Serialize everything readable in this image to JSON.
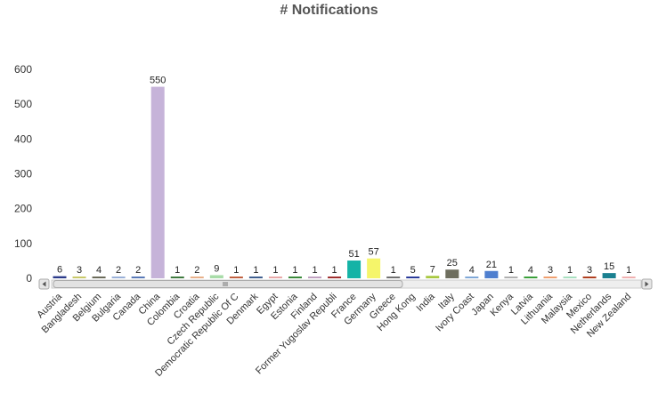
{
  "chart_data": {
    "type": "bar",
    "title": "# Notifications",
    "xlabel": "",
    "ylabel": "",
    "ylim": [
      0,
      600
    ],
    "yticks": [
      0,
      100,
      200,
      300,
      400,
      500,
      600
    ],
    "grid": false,
    "categories": [
      "Austria",
      "Bangladesh",
      "Belgium",
      "Bulgaria",
      "Canada",
      "China",
      "Colombia",
      "Croatia",
      "Czech Republic",
      "Democratic Republic Of C",
      "Denmark",
      "Egypt",
      "Estonia",
      "Finland",
      "Former Yugoslav Republi",
      "France",
      "Germany",
      "Greece",
      "Hong Kong",
      "India",
      "Italy",
      "Ivory Coast",
      "Japan",
      "Kenya",
      "Latvia",
      "Lithuania",
      "Malaysia",
      "Mexico",
      "Netherlands",
      "New Zealand"
    ],
    "values": [
      6,
      3,
      4,
      2,
      2,
      550,
      1,
      2,
      9,
      1,
      1,
      1,
      1,
      1,
      1,
      51,
      57,
      1,
      5,
      7,
      25,
      4,
      21,
      1,
      4,
      3,
      1,
      3,
      15,
      1
    ],
    "colors": [
      "#2b3a8a",
      "#c9c96a",
      "#6b6b5a",
      "#9ab0d8",
      "#5a7ab8",
      "#c6b3d9",
      "#3f7a3f",
      "#e8b08a",
      "#a8dca8",
      "#c06040",
      "#3f5f8f",
      "#e8a8a8",
      "#3a8a3a",
      "#c0a0c0",
      "#a03030",
      "#14b3a6",
      "#f5f56a",
      "#707070",
      "#2a3a9a",
      "#a8c840",
      "#6e6e5e",
      "#80a8d8",
      "#4f7fcf",
      "#b0b0b0",
      "#3aa03a",
      "#f0a070",
      "#a8e0c0",
      "#b04020",
      "#1a8090",
      "#f0b0b0"
    ]
  }
}
